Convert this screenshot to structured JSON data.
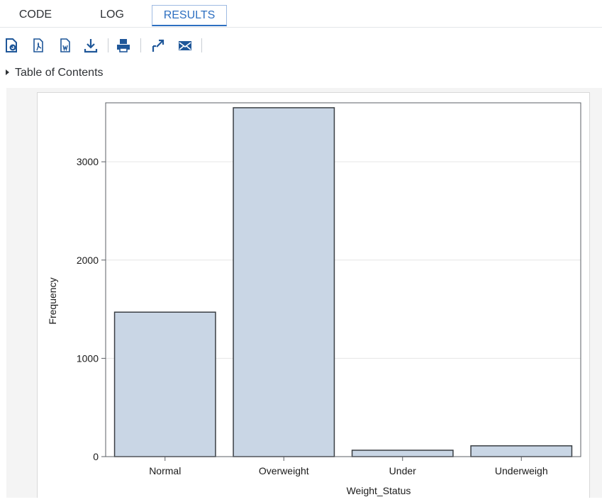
{
  "tabs": [
    {
      "label": "CODE",
      "active": false
    },
    {
      "label": "LOG",
      "active": false
    },
    {
      "label": "RESULTS",
      "active": true
    }
  ],
  "toolbar": {
    "icons": [
      "refresh-document-icon",
      "pdf-download-icon",
      "word-download-icon",
      "download-icon",
      "print-icon",
      "open-in-new-window-icon",
      "email-icon"
    ],
    "icon_color": "#1f5799"
  },
  "toc": {
    "label": "Table of Contents"
  },
  "chart_data": {
    "type": "bar",
    "categories": [
      "Normal",
      "Overweight",
      "Under",
      "Underweigh"
    ],
    "values": [
      1470,
      3550,
      65,
      110
    ],
    "xlabel": "Weight_Status",
    "ylabel": "Frequency",
    "yticks": [
      0,
      1000,
      2000,
      3000
    ],
    "ylim": [
      0,
      3600
    ],
    "grid": true,
    "bar_color": "#c9d6e5",
    "bar_edge_color": "#3a3f44"
  }
}
